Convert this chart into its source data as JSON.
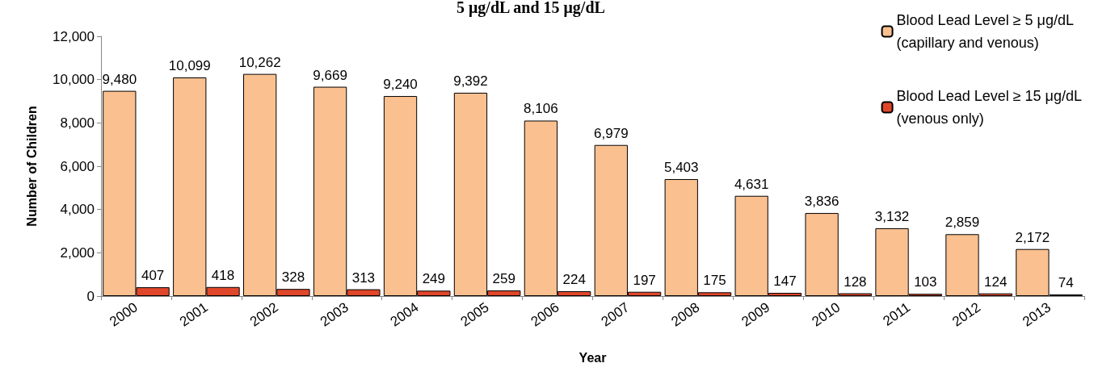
{
  "chart_data": {
    "type": "bar",
    "title": "5 μg/dL and 15 μg/dL",
    "xlabel": "Year",
    "ylabel": "Number of Children",
    "categories": [
      "2000",
      "2001",
      "2002",
      "2003",
      "2004",
      "2005",
      "2006",
      "2007",
      "2008",
      "2009",
      "2010",
      "2011",
      "2012",
      "2013"
    ],
    "series": [
      {
        "name": "Blood Lead Level ≥ 5 μg/dL\n(capillary and venous)",
        "color": "#fac090",
        "values": [
          9480,
          10099,
          10262,
          9669,
          9240,
          9392,
          8106,
          6979,
          5403,
          4631,
          3836,
          3132,
          2859,
          2172
        ],
        "value_labels": [
          "9,480",
          "10,099",
          "10,262",
          "9,669",
          "9,240",
          "9,392",
          "8,106",
          "6,979",
          "5,403",
          "4,631",
          "3,836",
          "3,132",
          "2,859",
          "2,172"
        ]
      },
      {
        "name": "Blood Lead Level ≥ 15 μg/dL\n(venous only)",
        "color": "#e0472a",
        "values": [
          407,
          418,
          328,
          313,
          249,
          259,
          224,
          197,
          175,
          147,
          128,
          103,
          124,
          74
        ],
        "value_labels": [
          "407",
          "418",
          "328",
          "313",
          "249",
          "259",
          "224",
          "197",
          "175",
          "147",
          "128",
          "103",
          "124",
          "74"
        ]
      }
    ],
    "ylim": [
      0,
      12000
    ],
    "yticks": [
      0,
      {
        "value": 2000,
        "label": "2,000"
      },
      {
        "value": 4000,
        "label": "4,000"
      },
      {
        "value": 6000,
        "label": "6,000"
      },
      {
        "value": 8000,
        "label": "8,000"
      },
      {
        "value": 10000,
        "label": "10,000"
      },
      {
        "value": 12000,
        "label": "12,000"
      }
    ],
    "grid": false,
    "legend": "top right"
  }
}
